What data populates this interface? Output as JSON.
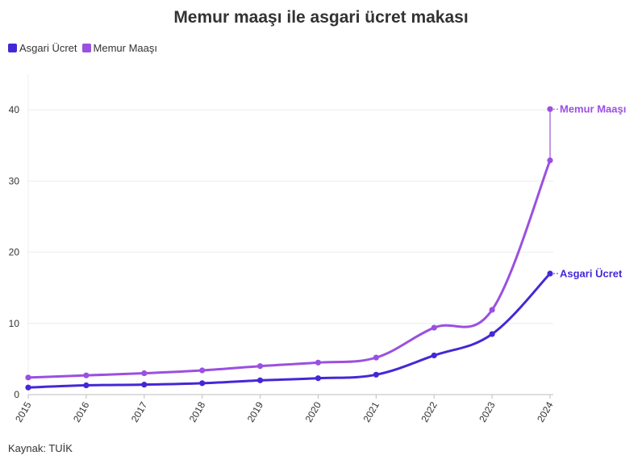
{
  "chart_data": {
    "type": "line",
    "title": "Memur maaşı ile asgari ücret makası",
    "x": [
      "2015",
      "2016",
      "2017",
      "2018",
      "2019",
      "2020",
      "2021",
      "2022",
      "2023",
      "2024"
    ],
    "series": [
      {
        "name": "Asgari Ücret",
        "color": "#4527d6",
        "values": [
          1.0,
          1.3,
          1.4,
          1.6,
          2.0,
          2.3,
          2.8,
          5.5,
          8.5,
          17.0
        ],
        "end_label": "Asgari Ücret"
      },
      {
        "name": "Memur Maaşı",
        "color": "#9a50e0",
        "values": [
          2.4,
          2.7,
          3.0,
          3.4,
          4.0,
          4.5,
          5.2,
          9.4,
          11.9,
          32.9
        ],
        "extra_point": 40.1,
        "end_label": "Memur Maaşı"
      }
    ],
    "yticks": [
      0,
      10,
      20,
      30,
      40
    ],
    "ylim": [
      0,
      45
    ],
    "legend": "top-left",
    "grid": true
  },
  "source": "Kaynak: TUİK"
}
